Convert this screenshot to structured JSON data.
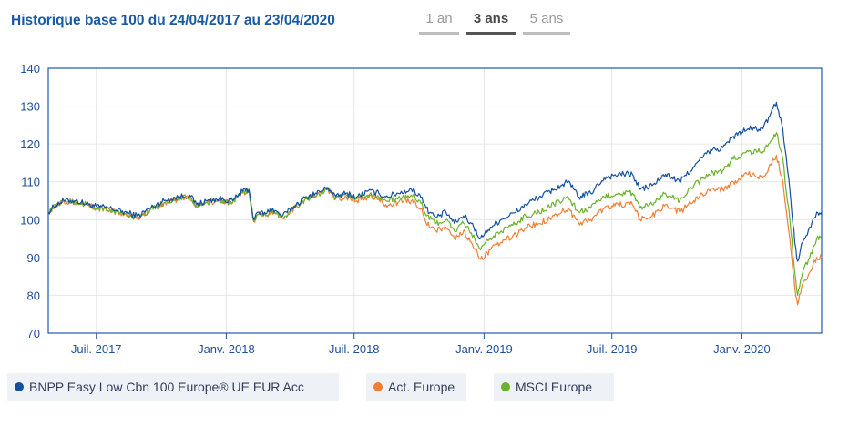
{
  "header": {
    "title": "Historique base 100 du 24/04/2017 au 23/04/2020",
    "tabs": [
      {
        "label": "1 an",
        "active": false
      },
      {
        "label": "3 ans",
        "active": true
      },
      {
        "label": "5 ans",
        "active": false
      }
    ]
  },
  "legend": [
    {
      "label": "BNPP Easy Low Cbn 100 Europe® UE EUR Acc",
      "color": "#1450a0"
    },
    {
      "label": "Act. Europe",
      "color": "#f07f33"
    },
    {
      "label": "MSCI Europe",
      "color": "#6ab22b"
    }
  ],
  "chart_data": {
    "type": "line",
    "title": "Historique base 100 du 24/04/2017 au 23/04/2020",
    "x_range": [
      "2017-04-24",
      "2020-04-23"
    ],
    "ylim": [
      70,
      140
    ],
    "yticks": [
      70,
      80,
      90,
      100,
      110,
      120,
      130,
      140
    ],
    "xticks": [
      {
        "date": "2017-07-01",
        "label": "Juil. 2017"
      },
      {
        "date": "2018-01-01",
        "label": "Janv. 2018"
      },
      {
        "date": "2018-07-01",
        "label": "Juil. 2018"
      },
      {
        "date": "2019-01-01",
        "label": "Janv. 2019"
      },
      {
        "date": "2019-07-01",
        "label": "Juil. 2019"
      },
      {
        "date": "2020-01-01",
        "label": "Janv. 2020"
      }
    ],
    "grid": true,
    "legend_position": "bottom",
    "series": [
      {
        "name": "BNPP Easy Low Cbn 100 Europe® UE EUR Acc",
        "color": "#1450a0",
        "points": [
          [
            "2017-04-24",
            102
          ],
          [
            "2017-05-05",
            104
          ],
          [
            "2017-05-16",
            105
          ],
          [
            "2017-06-02",
            105
          ],
          [
            "2017-06-20",
            104
          ],
          [
            "2017-07-01",
            103.5
          ],
          [
            "2017-07-20",
            103
          ],
          [
            "2017-08-10",
            102
          ],
          [
            "2017-08-29",
            101
          ],
          [
            "2017-09-15",
            103
          ],
          [
            "2017-10-05",
            105
          ],
          [
            "2017-10-25",
            106
          ],
          [
            "2017-11-10",
            106.5
          ],
          [
            "2017-11-20",
            104
          ],
          [
            "2017-12-05",
            105
          ],
          [
            "2017-12-22",
            105.5
          ],
          [
            "2018-01-10",
            105
          ],
          [
            "2018-01-24",
            107.5
          ],
          [
            "2018-02-02",
            108
          ],
          [
            "2018-02-09",
            100
          ],
          [
            "2018-02-16",
            102
          ],
          [
            "2018-02-26",
            101.5
          ],
          [
            "2018-03-05",
            103
          ],
          [
            "2018-03-22",
            101
          ],
          [
            "2018-04-10",
            104
          ],
          [
            "2018-04-25",
            106
          ],
          [
            "2018-05-15",
            107.5
          ],
          [
            "2018-05-25",
            108.5
          ],
          [
            "2018-06-05",
            106
          ],
          [
            "2018-06-20",
            107
          ],
          [
            "2018-07-05",
            106
          ],
          [
            "2018-07-20",
            107.5
          ],
          [
            "2018-08-05",
            107
          ],
          [
            "2018-08-15",
            106
          ],
          [
            "2018-09-01",
            107
          ],
          [
            "2018-09-20",
            108
          ],
          [
            "2018-10-05",
            106
          ],
          [
            "2018-10-11",
            103
          ],
          [
            "2018-10-25",
            100.5
          ],
          [
            "2018-11-08",
            102
          ],
          [
            "2018-11-20",
            99
          ],
          [
            "2018-12-03",
            101
          ],
          [
            "2018-12-14",
            99
          ],
          [
            "2018-12-27",
            95
          ],
          [
            "2019-01-10",
            98
          ],
          [
            "2019-01-25",
            100
          ],
          [
            "2019-02-15",
            102
          ],
          [
            "2019-03-01",
            104
          ],
          [
            "2019-03-20",
            106
          ],
          [
            "2019-04-10",
            108
          ],
          [
            "2019-04-30",
            110
          ],
          [
            "2019-05-15",
            106
          ],
          [
            "2019-06-01",
            107
          ],
          [
            "2019-06-20",
            111
          ],
          [
            "2019-07-10",
            112
          ],
          [
            "2019-07-30",
            112
          ],
          [
            "2019-08-10",
            108
          ],
          [
            "2019-08-27",
            109
          ],
          [
            "2019-09-15",
            112
          ],
          [
            "2019-10-05",
            110
          ],
          [
            "2019-10-25",
            114
          ],
          [
            "2019-11-15",
            118
          ],
          [
            "2019-12-05",
            119
          ],
          [
            "2019-12-20",
            122
          ],
          [
            "2020-01-10",
            124
          ],
          [
            "2020-01-31",
            124
          ],
          [
            "2020-02-19",
            131
          ],
          [
            "2020-02-28",
            124
          ],
          [
            "2020-03-09",
            108
          ],
          [
            "2020-03-16",
            94
          ],
          [
            "2020-03-20",
            89
          ],
          [
            "2020-03-27",
            94
          ],
          [
            "2020-04-06",
            98
          ],
          [
            "2020-04-16",
            102
          ],
          [
            "2020-04-23",
            102
          ]
        ]
      },
      {
        "name": "Act. Europe",
        "color": "#f07f33",
        "points": [
          [
            "2017-04-24",
            102
          ],
          [
            "2017-05-05",
            104
          ],
          [
            "2017-05-16",
            105
          ],
          [
            "2017-06-02",
            104.5
          ],
          [
            "2017-06-20",
            104
          ],
          [
            "2017-07-01",
            103
          ],
          [
            "2017-07-20",
            102.5
          ],
          [
            "2017-08-10",
            101.5
          ],
          [
            "2017-08-29",
            100.5
          ],
          [
            "2017-09-15",
            102.5
          ],
          [
            "2017-10-05",
            104.5
          ],
          [
            "2017-10-25",
            105.5
          ],
          [
            "2017-11-10",
            106
          ],
          [
            "2017-11-20",
            103.5
          ],
          [
            "2017-12-05",
            104.5
          ],
          [
            "2017-12-22",
            105
          ],
          [
            "2018-01-10",
            104.5
          ],
          [
            "2018-01-24",
            107
          ],
          [
            "2018-02-02",
            107.5
          ],
          [
            "2018-02-09",
            99.5
          ],
          [
            "2018-02-16",
            101.5
          ],
          [
            "2018-02-26",
            101
          ],
          [
            "2018-03-05",
            102.5
          ],
          [
            "2018-03-22",
            100.5
          ],
          [
            "2018-04-10",
            103.5
          ],
          [
            "2018-04-25",
            105.5
          ],
          [
            "2018-05-15",
            107
          ],
          [
            "2018-05-25",
            108
          ],
          [
            "2018-06-05",
            105.5
          ],
          [
            "2018-06-20",
            106
          ],
          [
            "2018-07-05",
            105
          ],
          [
            "2018-07-20",
            106
          ],
          [
            "2018-08-05",
            105.5
          ],
          [
            "2018-08-15",
            104
          ],
          [
            "2018-09-01",
            104.5
          ],
          [
            "2018-09-20",
            105
          ],
          [
            "2018-10-05",
            103
          ],
          [
            "2018-10-11",
            99
          ],
          [
            "2018-10-25",
            97
          ],
          [
            "2018-11-08",
            98
          ],
          [
            "2018-11-20",
            95
          ],
          [
            "2018-12-03",
            97
          ],
          [
            "2018-12-14",
            94
          ],
          [
            "2018-12-27",
            89.5
          ],
          [
            "2019-01-10",
            92
          ],
          [
            "2019-01-25",
            94
          ],
          [
            "2019-02-15",
            96
          ],
          [
            "2019-03-01",
            98
          ],
          [
            "2019-03-20",
            99
          ],
          [
            "2019-04-10",
            101
          ],
          [
            "2019-04-30",
            103
          ],
          [
            "2019-05-15",
            99
          ],
          [
            "2019-06-01",
            100
          ],
          [
            "2019-06-20",
            103
          ],
          [
            "2019-07-10",
            104
          ],
          [
            "2019-07-30",
            104
          ],
          [
            "2019-08-10",
            100
          ],
          [
            "2019-08-27",
            101
          ],
          [
            "2019-09-15",
            104
          ],
          [
            "2019-10-05",
            102
          ],
          [
            "2019-10-25",
            105
          ],
          [
            "2019-11-15",
            108
          ],
          [
            "2019-12-05",
            108
          ],
          [
            "2019-12-20",
            110
          ],
          [
            "2020-01-10",
            112
          ],
          [
            "2020-01-31",
            111
          ],
          [
            "2020-02-19",
            117
          ],
          [
            "2020-02-28",
            110
          ],
          [
            "2020-03-09",
            95
          ],
          [
            "2020-03-16",
            82
          ],
          [
            "2020-03-20",
            77.5
          ],
          [
            "2020-03-27",
            83
          ],
          [
            "2020-04-06",
            86
          ],
          [
            "2020-04-16",
            90
          ],
          [
            "2020-04-23",
            90
          ]
        ]
      },
      {
        "name": "MSCI Europe",
        "color": "#6ab22b",
        "points": [
          [
            "2017-04-24",
            102
          ],
          [
            "2017-05-05",
            104
          ],
          [
            "2017-05-16",
            105
          ],
          [
            "2017-06-02",
            104.5
          ],
          [
            "2017-06-20",
            104
          ],
          [
            "2017-07-01",
            103
          ],
          [
            "2017-07-20",
            102.5
          ],
          [
            "2017-08-10",
            101.5
          ],
          [
            "2017-08-29",
            100.5
          ],
          [
            "2017-09-15",
            102.5
          ],
          [
            "2017-10-05",
            104.5
          ],
          [
            "2017-10-25",
            105.5
          ],
          [
            "2017-11-10",
            106
          ],
          [
            "2017-11-20",
            103.5
          ],
          [
            "2017-12-05",
            104.5
          ],
          [
            "2017-12-22",
            105
          ],
          [
            "2018-01-10",
            104.5
          ],
          [
            "2018-01-24",
            107
          ],
          [
            "2018-02-02",
            107.5
          ],
          [
            "2018-02-09",
            99.5
          ],
          [
            "2018-02-16",
            101.5
          ],
          [
            "2018-02-26",
            101
          ],
          [
            "2018-03-05",
            102.5
          ],
          [
            "2018-03-22",
            100.5
          ],
          [
            "2018-04-10",
            103.5
          ],
          [
            "2018-04-25",
            105.5
          ],
          [
            "2018-05-15",
            107
          ],
          [
            "2018-05-25",
            108
          ],
          [
            "2018-06-05",
            105.5
          ],
          [
            "2018-06-20",
            106.5
          ],
          [
            "2018-07-05",
            105.5
          ],
          [
            "2018-07-20",
            106.5
          ],
          [
            "2018-08-05",
            106
          ],
          [
            "2018-08-15",
            105
          ],
          [
            "2018-09-01",
            105.5
          ],
          [
            "2018-09-20",
            106.5
          ],
          [
            "2018-10-05",
            104.5
          ],
          [
            "2018-10-11",
            101
          ],
          [
            "2018-10-25",
            99
          ],
          [
            "2018-11-08",
            100
          ],
          [
            "2018-11-20",
            97
          ],
          [
            "2018-12-03",
            99
          ],
          [
            "2018-12-14",
            96.5
          ],
          [
            "2018-12-27",
            92
          ],
          [
            "2019-01-10",
            95
          ],
          [
            "2019-01-25",
            97
          ],
          [
            "2019-02-15",
            99
          ],
          [
            "2019-03-01",
            101
          ],
          [
            "2019-03-20",
            102
          ],
          [
            "2019-04-10",
            104
          ],
          [
            "2019-04-30",
            106
          ],
          [
            "2019-05-15",
            102
          ],
          [
            "2019-06-01",
            103
          ],
          [
            "2019-06-20",
            106
          ],
          [
            "2019-07-10",
            107
          ],
          [
            "2019-07-30",
            107
          ],
          [
            "2019-08-10",
            103
          ],
          [
            "2019-08-27",
            104
          ],
          [
            "2019-09-15",
            107
          ],
          [
            "2019-10-05",
            105
          ],
          [
            "2019-10-25",
            109
          ],
          [
            "2019-11-15",
            112
          ],
          [
            "2019-12-05",
            113
          ],
          [
            "2019-12-20",
            116
          ],
          [
            "2020-01-10",
            118
          ],
          [
            "2020-01-31",
            118
          ],
          [
            "2020-02-19",
            123
          ],
          [
            "2020-02-28",
            116
          ],
          [
            "2020-03-09",
            100
          ],
          [
            "2020-03-16",
            86
          ],
          [
            "2020-03-20",
            80
          ],
          [
            "2020-03-27",
            86
          ],
          [
            "2020-04-06",
            90
          ],
          [
            "2020-04-16",
            95
          ],
          [
            "2020-04-23",
            95
          ]
        ]
      }
    ]
  }
}
